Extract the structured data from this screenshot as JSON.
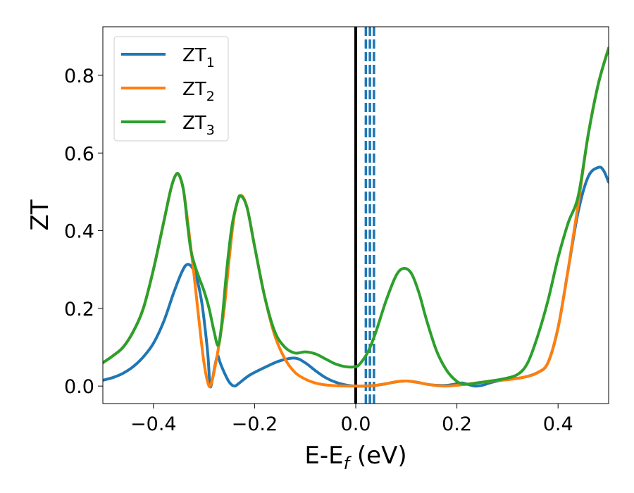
{
  "chart_data": {
    "type": "line",
    "title": "",
    "xlabel": "E-E",
    "xlabel_sub": "f",
    "xlabel_suffix": " (eV)",
    "ylabel": "ZT",
    "xlim": [
      -0.5,
      0.5
    ],
    "ylim": [
      -0.045,
      0.925
    ],
    "xticks": [
      -0.4,
      -0.2,
      0.0,
      0.2,
      0.4
    ],
    "xtick_labels": [
      "−0.4",
      "−0.2",
      "0.0",
      "0.2",
      "0.4"
    ],
    "yticks": [
      0.0,
      0.2,
      0.4,
      0.6,
      0.8
    ],
    "ytick_labels": [
      "0.0",
      "0.2",
      "0.4",
      "0.6",
      "0.8"
    ],
    "grid": false,
    "legend_position": "top-left",
    "vertical_lines": [
      {
        "x": 0.0,
        "color": "#000000",
        "style": "solid"
      },
      {
        "x": 0.02,
        "color": "#1f77b4",
        "style": "dashed"
      },
      {
        "x": 0.028,
        "color": "#1f77b4",
        "style": "dashed"
      },
      {
        "x": 0.036,
        "color": "#1f77b4",
        "style": "dashed"
      }
    ],
    "series": [
      {
        "name": "ZT",
        "name_sub": "1",
        "color": "#1f77b4",
        "points": [
          [
            -0.5,
            0.015
          ],
          [
            -0.48,
            0.022
          ],
          [
            -0.46,
            0.033
          ],
          [
            -0.44,
            0.05
          ],
          [
            -0.42,
            0.075
          ],
          [
            -0.4,
            0.11
          ],
          [
            -0.38,
            0.165
          ],
          [
            -0.36,
            0.24
          ],
          [
            -0.345,
            0.29
          ],
          [
            -0.335,
            0.312
          ],
          [
            -0.325,
            0.308
          ],
          [
            -0.315,
            0.28
          ],
          [
            -0.305,
            0.22
          ],
          [
            -0.298,
            0.15
          ],
          [
            -0.292,
            0.075
          ],
          [
            -0.288,
            0.0
          ],
          [
            -0.283,
            0.02
          ],
          [
            -0.278,
            0.055
          ],
          [
            -0.273,
            0.078
          ],
          [
            -0.268,
            0.06
          ],
          [
            -0.26,
            0.035
          ],
          [
            -0.25,
            0.01
          ],
          [
            -0.24,
            0.0
          ],
          [
            -0.23,
            0.008
          ],
          [
            -0.21,
            0.028
          ],
          [
            -0.18,
            0.048
          ],
          [
            -0.15,
            0.065
          ],
          [
            -0.12,
            0.072
          ],
          [
            -0.1,
            0.06
          ],
          [
            -0.08,
            0.04
          ],
          [
            -0.06,
            0.022
          ],
          [
            -0.04,
            0.01
          ],
          [
            -0.02,
            0.003
          ],
          [
            0.0,
            0.0
          ],
          [
            0.02,
            0.0
          ],
          [
            0.04,
            0.002
          ],
          [
            0.06,
            0.006
          ],
          [
            0.08,
            0.011
          ],
          [
            0.1,
            0.013
          ],
          [
            0.12,
            0.01
          ],
          [
            0.14,
            0.005
          ],
          [
            0.16,
            0.002
          ],
          [
            0.18,
            0.002
          ],
          [
            0.2,
            0.006
          ],
          [
            0.21,
            0.008
          ],
          [
            0.22,
            0.005
          ],
          [
            0.235,
            0.0
          ],
          [
            0.25,
            0.002
          ],
          [
            0.27,
            0.01
          ],
          [
            0.3,
            0.018
          ],
          [
            0.33,
            0.022
          ],
          [
            0.36,
            0.035
          ],
          [
            0.38,
            0.06
          ],
          [
            0.4,
            0.15
          ],
          [
            0.42,
            0.3
          ],
          [
            0.44,
            0.45
          ],
          [
            0.46,
            0.54
          ],
          [
            0.48,
            0.563
          ],
          [
            0.49,
            0.555
          ],
          [
            0.5,
            0.525
          ]
        ]
      },
      {
        "name": "ZT",
        "name_sub": "2",
        "color": "#ff7f0e",
        "points": [
          [
            -0.5,
            0.06
          ],
          [
            -0.48,
            0.078
          ],
          [
            -0.46,
            0.1
          ],
          [
            -0.44,
            0.14
          ],
          [
            -0.42,
            0.2
          ],
          [
            -0.4,
            0.3
          ],
          [
            -0.38,
            0.42
          ],
          [
            -0.365,
            0.51
          ],
          [
            -0.355,
            0.545
          ],
          [
            -0.348,
            0.54
          ],
          [
            -0.34,
            0.5
          ],
          [
            -0.33,
            0.4
          ],
          [
            -0.32,
            0.29
          ],
          [
            -0.31,
            0.17
          ],
          [
            -0.3,
            0.06
          ],
          [
            -0.29,
            0.0
          ],
          [
            -0.283,
            0.02
          ],
          [
            -0.276,
            0.065
          ],
          [
            -0.27,
            0.11
          ],
          [
            -0.26,
            0.2
          ],
          [
            -0.25,
            0.33
          ],
          [
            -0.24,
            0.44
          ],
          [
            -0.228,
            0.49
          ],
          [
            -0.215,
            0.46
          ],
          [
            -0.2,
            0.36
          ],
          [
            -0.18,
            0.23
          ],
          [
            -0.16,
            0.13
          ],
          [
            -0.14,
            0.07
          ],
          [
            -0.12,
            0.035
          ],
          [
            -0.1,
            0.018
          ],
          [
            -0.08,
            0.008
          ],
          [
            -0.06,
            0.003
          ],
          [
            -0.04,
            0.001
          ],
          [
            -0.02,
            0.0
          ],
          [
            0.0,
            0.0
          ],
          [
            0.02,
            0.0
          ],
          [
            0.04,
            0.002
          ],
          [
            0.06,
            0.006
          ],
          [
            0.08,
            0.011
          ],
          [
            0.1,
            0.013
          ],
          [
            0.12,
            0.01
          ],
          [
            0.14,
            0.005
          ],
          [
            0.16,
            0.001
          ],
          [
            0.18,
            0.0
          ],
          [
            0.2,
            0.002
          ],
          [
            0.22,
            0.005
          ],
          [
            0.25,
            0.01
          ],
          [
            0.28,
            0.014
          ],
          [
            0.31,
            0.018
          ],
          [
            0.34,
            0.025
          ],
          [
            0.36,
            0.035
          ],
          [
            0.38,
            0.06
          ],
          [
            0.4,
            0.15
          ],
          [
            0.42,
            0.3
          ],
          [
            0.44,
            0.47
          ],
          [
            0.46,
            0.65
          ],
          [
            0.48,
            0.78
          ],
          [
            0.5,
            0.87
          ]
        ]
      },
      {
        "name": "ZT",
        "name_sub": "3",
        "color": "#2ca02c",
        "points": [
          [
            -0.5,
            0.06
          ],
          [
            -0.48,
            0.078
          ],
          [
            -0.46,
            0.1
          ],
          [
            -0.44,
            0.14
          ],
          [
            -0.42,
            0.2
          ],
          [
            -0.4,
            0.3
          ],
          [
            -0.38,
            0.42
          ],
          [
            -0.365,
            0.51
          ],
          [
            -0.355,
            0.545
          ],
          [
            -0.348,
            0.54
          ],
          [
            -0.34,
            0.5
          ],
          [
            -0.333,
            0.42
          ],
          [
            -0.326,
            0.35
          ],
          [
            -0.318,
            0.31
          ],
          [
            -0.31,
            0.28
          ],
          [
            -0.3,
            0.245
          ],
          [
            -0.29,
            0.2
          ],
          [
            -0.28,
            0.14
          ],
          [
            -0.272,
            0.105
          ],
          [
            -0.265,
            0.16
          ],
          [
            -0.255,
            0.3
          ],
          [
            -0.245,
            0.41
          ],
          [
            -0.235,
            0.47
          ],
          [
            -0.228,
            0.49
          ],
          [
            -0.215,
            0.46
          ],
          [
            -0.2,
            0.36
          ],
          [
            -0.18,
            0.23
          ],
          [
            -0.16,
            0.14
          ],
          [
            -0.14,
            0.1
          ],
          [
            -0.12,
            0.085
          ],
          [
            -0.1,
            0.088
          ],
          [
            -0.08,
            0.083
          ],
          [
            -0.06,
            0.07
          ],
          [
            -0.04,
            0.057
          ],
          [
            -0.02,
            0.05
          ],
          [
            0.0,
            0.05
          ],
          [
            0.01,
            0.06
          ],
          [
            0.025,
            0.09
          ],
          [
            0.04,
            0.14
          ],
          [
            0.06,
            0.22
          ],
          [
            0.08,
            0.285
          ],
          [
            0.095,
            0.303
          ],
          [
            0.11,
            0.29
          ],
          [
            0.125,
            0.24
          ],
          [
            0.14,
            0.17
          ],
          [
            0.16,
            0.09
          ],
          [
            0.18,
            0.04
          ],
          [
            0.2,
            0.012
          ],
          [
            0.215,
            0.005
          ],
          [
            0.23,
            0.006
          ],
          [
            0.26,
            0.012
          ],
          [
            0.29,
            0.018
          ],
          [
            0.32,
            0.03
          ],
          [
            0.34,
            0.06
          ],
          [
            0.36,
            0.13
          ],
          [
            0.38,
            0.22
          ],
          [
            0.4,
            0.33
          ],
          [
            0.42,
            0.42
          ],
          [
            0.44,
            0.49
          ],
          [
            0.46,
            0.65
          ],
          [
            0.48,
            0.78
          ],
          [
            0.5,
            0.87
          ]
        ]
      }
    ]
  }
}
